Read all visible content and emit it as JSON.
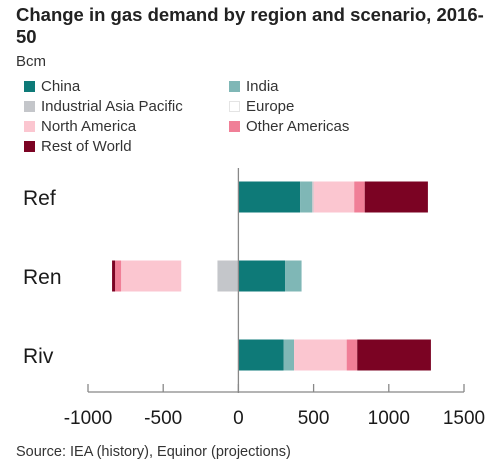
{
  "title": "Change in gas demand by region and scenario, 2016-50",
  "unit": "Bcm",
  "source": "Source: IEA (history), Equinor (projections)",
  "chart_data": {
    "type": "bar",
    "orientation": "horizontal",
    "stacked": true,
    "categories": [
      "Ref",
      "Ren",
      "Riv"
    ],
    "xlim": [
      -1000,
      1500
    ],
    "x_ticks": [
      "-1000",
      "-500",
      "0",
      "500",
      "1000",
      "1500"
    ],
    "grid": false,
    "legend_position": "top",
    "series": [
      {
        "name": "China",
        "color": "#0e7a78",
        "values": [
          410,
          310,
          300
        ]
      },
      {
        "name": "India",
        "color": "#7fb7b6",
        "values": [
          80,
          110,
          70
        ]
      },
      {
        "name": "Industrial Asia Pacific",
        "color": "#c4c6ca",
        "values": [
          10,
          -140,
          0
        ]
      },
      {
        "name": "Europe",
        "color": "#ffffff",
        "values": [
          -70,
          -240,
          -110
        ]
      },
      {
        "name": "North America",
        "color": "#fbc6d0",
        "values": [
          270,
          -400,
          350
        ]
      },
      {
        "name": "Other Americas",
        "color": "#f07f97",
        "values": [
          70,
          -40,
          70
        ]
      },
      {
        "name": "Rest of World",
        "color": "#7b0323",
        "values": [
          420,
          -20,
          490
        ]
      }
    ]
  }
}
